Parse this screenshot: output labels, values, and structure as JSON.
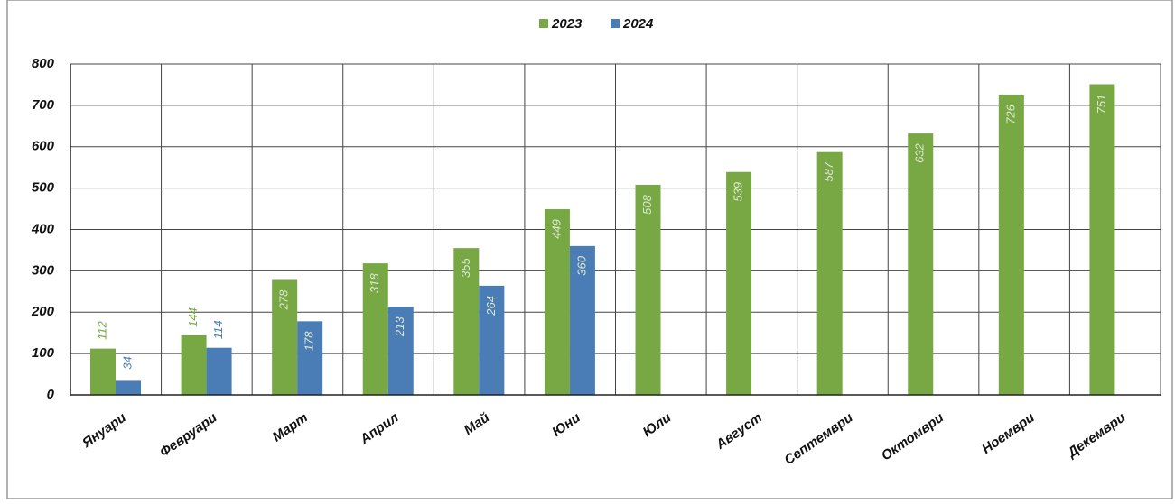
{
  "chart_data": {
    "type": "bar",
    "categories": [
      "Януари",
      "Февруари",
      "Март",
      "Април",
      "Май",
      "Юни",
      "Юли",
      "Август",
      "Септември",
      "Октомври",
      "Ноември",
      "Декември"
    ],
    "series": [
      {
        "name": "2023",
        "color": "#77a843",
        "values": [
          112,
          144,
          278,
          318,
          355,
          449,
          508,
          539,
          587,
          632,
          726,
          751
        ]
      },
      {
        "name": "2024",
        "color": "#4a7db5",
        "values": [
          34,
          114,
          178,
          213,
          264,
          360,
          null,
          null,
          null,
          null,
          null,
          null
        ]
      }
    ],
    "ylim": [
      0,
      800
    ],
    "yticks": [
      0,
      100,
      200,
      300,
      400,
      500,
      600,
      700,
      800
    ],
    "grid": true,
    "legend": "top"
  }
}
